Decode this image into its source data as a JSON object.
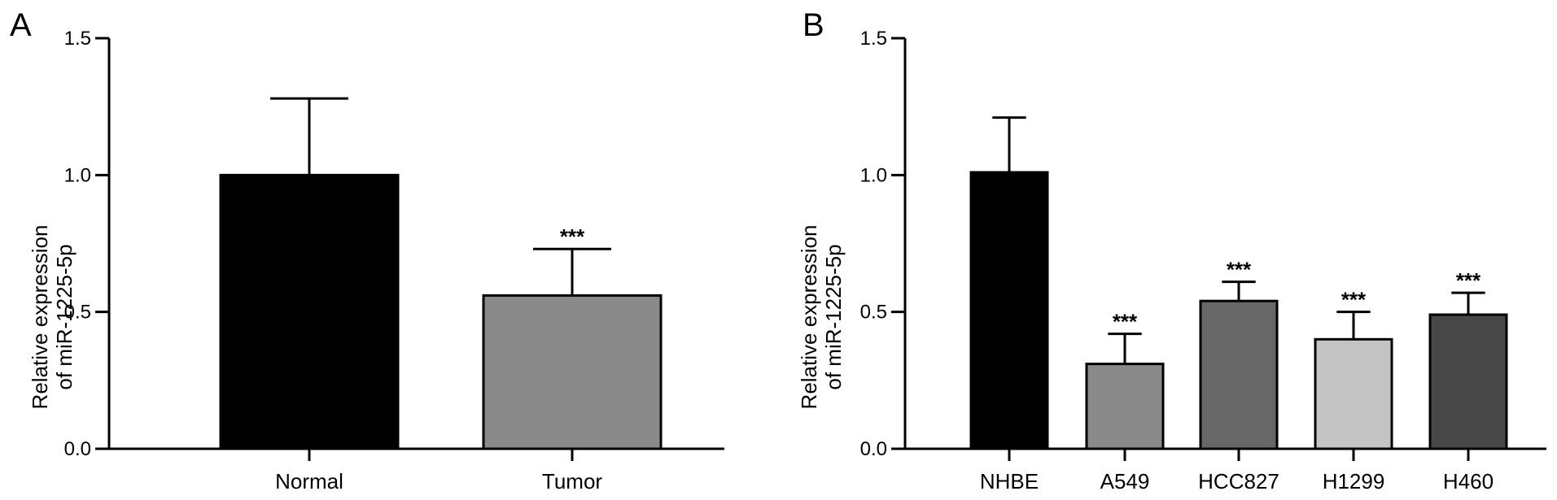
{
  "chart_data": [
    {
      "type": "bar",
      "panel_label": "A",
      "title": "",
      "xlabel": "",
      "ylabel": [
        "Relative expression",
        "of miR-1225-5p"
      ],
      "ylim": [
        0,
        1.5
      ],
      "yticks": [
        "0.0",
        "0.5",
        "1.0",
        "1.5"
      ],
      "categories": [
        "Normal",
        "Tumor"
      ],
      "values": [
        1.0,
        0.56
      ],
      "errors": [
        0.28,
        0.17
      ],
      "significance": [
        "",
        "***"
      ],
      "colors": [
        "#000000",
        "#8a8a8a"
      ],
      "grid": false,
      "legend": "none"
    },
    {
      "type": "bar",
      "panel_label": "B",
      "title": "",
      "xlabel": "",
      "ylabel": [
        "Relative expression",
        "of miR-1225-5p"
      ],
      "ylim": [
        0,
        1.5
      ],
      "yticks": [
        "0.0",
        "0.5",
        "1.0",
        "1.5"
      ],
      "categories": [
        "NHBE",
        "A549",
        "HCC827",
        "H1299",
        "H460"
      ],
      "values": [
        1.01,
        0.31,
        0.54,
        0.4,
        0.49
      ],
      "errors": [
        0.2,
        0.11,
        0.07,
        0.1,
        0.08
      ],
      "significance": [
        "",
        "***",
        "***",
        "***",
        "***"
      ],
      "colors": [
        "#000000",
        "#8a8a8a",
        "#676767",
        "#c4c4c4",
        "#474747"
      ],
      "grid": false,
      "legend": "none"
    }
  ]
}
